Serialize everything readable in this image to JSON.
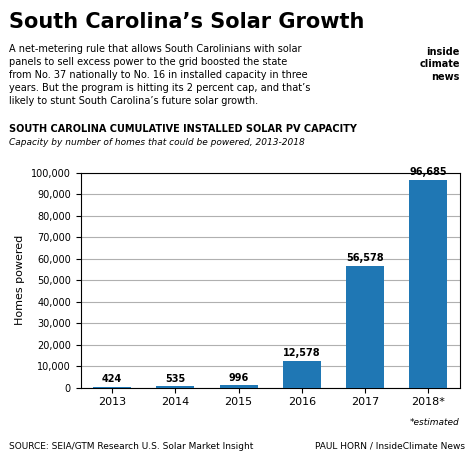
{
  "chart_data": {
    "type": "bar",
    "title": "South Carolina’s Solar Growth",
    "subtitle": "A net-metering rule that allows South Carolinians with solar\npanels to sell excess power to the grid boosted the state\nfrom No. 37 nationally to No. 16 in installed capacity in three\nyears. But the program is hitting its 2 percent cap, and that’s\nlikely to stunt South Carolina’s future solar growth.",
    "annotations": [
      "inside\nclimate\nnews",
      "SOUTH CAROLINA CUMULATIVE INSTALLED SOLAR PV CAPACITY",
      "Capacity by number of homes that could be powered, 2013-2018",
      "*estimated",
      "SOURCE: SEIA/GTM Research U.S. Solar Market Insight",
      "PAUL HORN / InsideClimate News"
    ],
    "ylabel": "Homes powered",
    "categories": [
      "2013",
      "2014",
      "2015",
      "2016",
      "2017",
      "2018*"
    ],
    "values": [
      424,
      535,
      996,
      12578,
      56578,
      96685
    ],
    "value_labels": [
      "424",
      "535",
      "996",
      "12,578",
      "56,578",
      "96,685"
    ],
    "data_labels": true,
    "ylim": [
      0,
      100000
    ],
    "yticks": [
      0,
      {
        "value": 10000,
        "label": "10,000"
      },
      {
        "value": 20000,
        "label": "20,000"
      },
      {
        "value": 30000,
        "label": "30,000"
      },
      {
        "value": 40000,
        "label": "40,000"
      },
      {
        "value": 50000,
        "label": "50,000"
      },
      {
        "value": 60000,
        "label": "60,000"
      },
      {
        "value": 70000,
        "label": "70,000"
      },
      {
        "value": 80000,
        "label": "80,000"
      },
      {
        "value": 90000,
        "label": "90,000"
      },
      {
        "value": 100000,
        "label": "100,000"
      }
    ],
    "grid": true
  }
}
